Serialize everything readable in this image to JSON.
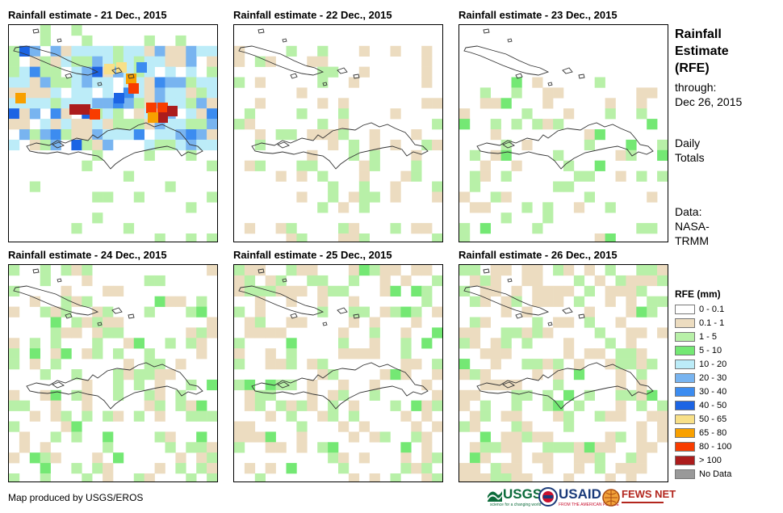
{
  "panels": [
    {
      "title": "Rainfall estimate - 21 Dec., 2015"
    },
    {
      "title": "Rainfall estimate - 22 Dec., 2015"
    },
    {
      "title": "Rainfall estimate - 23 Dec., 2015"
    },
    {
      "title": "Rainfall estimate - 24 Dec., 2015"
    },
    {
      "title": "Rainfall estimate - 25 Dec., 2015"
    },
    {
      "title": "Rainfall estimate - 26 Dec., 2015"
    }
  ],
  "sidebar": {
    "title_lines": [
      "Rainfall",
      "Estimate",
      "(RFE)"
    ],
    "through_label": "through:",
    "through_date": "Dec 26, 2015",
    "totals_lines": [
      "Daily",
      "Totals"
    ],
    "data_lines": [
      "Data:",
      "NASA-",
      "TRMM"
    ]
  },
  "legend": {
    "title": "RFE (mm)",
    "items": [
      {
        "label": "0 - 0.1",
        "color": "#ffffff"
      },
      {
        "label": "0.1 - 1",
        "color": "#ecdcc0"
      },
      {
        "label": "1 - 5",
        "color": "#b8f0a8"
      },
      {
        "label": "5 - 10",
        "color": "#74e874"
      },
      {
        "label": "10 - 20",
        "color": "#bcecf8"
      },
      {
        "label": "20 - 30",
        "color": "#78b4f0"
      },
      {
        "label": "30 - 40",
        "color": "#3c8cf0"
      },
      {
        "label": "40 - 50",
        "color": "#1c64e4"
      },
      {
        "label": "50 - 65",
        "color": "#f8e088"
      },
      {
        "label": "65 - 80",
        "color": "#f8a000"
      },
      {
        "label": "80 - 100",
        "color": "#f83c00"
      },
      {
        "label": "> 100",
        "color": "#ac1c1c"
      },
      {
        "label": "No Data",
        "color": "#999999"
      }
    ]
  },
  "credit": "Map produced by USGS/EROS",
  "logos": {
    "usgs": "USGS",
    "usgs_tag": "science for a changing world",
    "usaid": "USAID",
    "usaid_tag": "FROM THE AMERICAN PEOPLE",
    "fews": "FEWS NET"
  }
}
